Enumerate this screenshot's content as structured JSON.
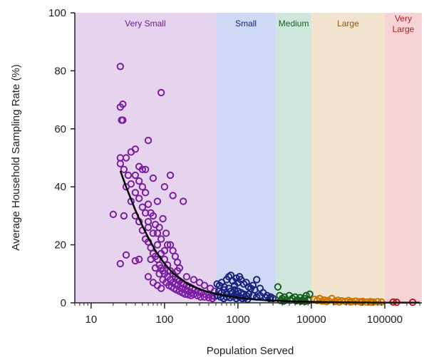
{
  "chart_data": {
    "type": "scatter",
    "xlabel": "Population Served",
    "ylabel": "Average Household Sampling Rate (%)",
    "xscale": "log",
    "xlim": [
      6,
      320000
    ],
    "ylim": [
      0,
      100
    ],
    "x_ticks": [
      {
        "value": 10,
        "label": "10"
      },
      {
        "value": 100,
        "label": "100"
      },
      {
        "value": 1000,
        "label": "1000"
      },
      {
        "value": 10000,
        "label": "10000"
      },
      {
        "value": 100000,
        "label": "100000"
      }
    ],
    "y_ticks": [
      {
        "value": 0,
        "label": "0"
      },
      {
        "value": 20,
        "label": "20"
      },
      {
        "value": 40,
        "label": "40"
      },
      {
        "value": 60,
        "label": "60"
      },
      {
        "value": 80,
        "label": "80"
      },
      {
        "value": 100,
        "label": "100"
      }
    ],
    "bands": [
      {
        "label": "Very Small",
        "x0": 6,
        "x1": 500,
        "fill": "#e6d4ee",
        "text_color": "#6a1b9a"
      },
      {
        "label": "Small",
        "x0": 500,
        "x1": 3300,
        "fill": "#cdd9f5",
        "text_color": "#1a237e"
      },
      {
        "label": "Medium",
        "x0": 3300,
        "x1": 10000,
        "fill": "#cfe6dc",
        "text_color": "#1b5e20"
      },
      {
        "label": "Large",
        "x0": 10000,
        "x1": 100000,
        "fill": "#f3e4cf",
        "text_color": "#8a5a00"
      },
      {
        "label": "Very Large",
        "x0": 100000,
        "x1": 320000,
        "fill": "#f6d3d6",
        "text_color": "#b71c1c"
      }
    ],
    "series": [
      {
        "category": "Very Small",
        "color": "#7b1fa2",
        "points": [
          [
            25,
            81.5
          ],
          [
            27,
            68.5
          ],
          [
            25,
            67.5
          ],
          [
            26,
            63
          ],
          [
            27,
            63
          ],
          [
            90,
            72.5
          ],
          [
            20,
            30.5
          ],
          [
            25,
            13.5
          ],
          [
            28,
            30
          ],
          [
            25,
            50
          ],
          [
            25,
            48
          ],
          [
            28,
            46
          ],
          [
            30,
            50
          ],
          [
            35,
            52
          ],
          [
            40,
            53
          ],
          [
            30,
            40
          ],
          [
            35,
            41
          ],
          [
            32,
            44
          ],
          [
            40,
            44
          ],
          [
            45,
            47
          ],
          [
            50,
            46
          ],
          [
            55,
            46
          ],
          [
            60,
            56
          ],
          [
            70,
            43
          ],
          [
            80,
            35
          ],
          [
            100,
            40
          ],
          [
            120,
            44
          ],
          [
            130,
            37
          ],
          [
            180,
            35
          ],
          [
            30,
            16.5
          ],
          [
            40,
            14.5
          ],
          [
            45,
            15
          ],
          [
            35,
            35
          ],
          [
            40,
            30
          ],
          [
            50,
            33
          ],
          [
            60,
            28
          ],
          [
            70,
            30
          ],
          [
            80,
            24
          ],
          [
            90,
            22
          ],
          [
            100,
            18
          ],
          [
            110,
            20
          ],
          [
            40,
            38
          ],
          [
            45,
            36
          ],
          [
            55,
            38
          ],
          [
            60,
            34
          ],
          [
            65,
            31
          ],
          [
            75,
            27
          ],
          [
            85,
            26
          ],
          [
            95,
            29
          ],
          [
            105,
            24
          ],
          [
            120,
            20
          ],
          [
            130,
            18
          ],
          [
            140,
            16
          ],
          [
            150,
            14
          ],
          [
            160,
            12
          ],
          [
            45,
            28
          ],
          [
            50,
            25
          ],
          [
            55,
            22
          ],
          [
            60,
            21
          ],
          [
            65,
            19
          ],
          [
            70,
            17
          ],
          [
            75,
            16
          ],
          [
            80,
            15
          ],
          [
            85,
            13
          ],
          [
            90,
            12
          ],
          [
            95,
            11
          ],
          [
            100,
            10
          ],
          [
            110,
            9
          ],
          [
            120,
            8
          ],
          [
            130,
            7
          ],
          [
            140,
            6.5
          ],
          [
            150,
            6
          ],
          [
            170,
            5
          ],
          [
            190,
            4.5
          ],
          [
            210,
            4
          ],
          [
            230,
            3.5
          ],
          [
            250,
            3
          ],
          [
            280,
            2.5
          ],
          [
            310,
            2
          ],
          [
            350,
            2
          ],
          [
            400,
            1.8
          ],
          [
            450,
            1.5
          ],
          [
            45,
            42
          ],
          [
            50,
            40
          ],
          [
            55,
            31
          ],
          [
            60,
            26
          ],
          [
            70,
            24
          ],
          [
            80,
            20
          ],
          [
            90,
            17
          ],
          [
            100,
            15
          ],
          [
            110,
            13
          ],
          [
            120,
            11
          ],
          [
            130,
            10
          ],
          [
            140,
            9
          ],
          [
            150,
            8
          ],
          [
            160,
            7.5
          ],
          [
            170,
            7
          ],
          [
            180,
            6.5
          ],
          [
            200,
            6
          ],
          [
            220,
            5.5
          ],
          [
            240,
            5
          ],
          [
            260,
            4.5
          ],
          [
            290,
            4
          ],
          [
            320,
            3.5
          ],
          [
            360,
            3
          ],
          [
            400,
            2.8
          ],
          [
            450,
            2.5
          ],
          [
            480,
            2.2
          ],
          [
            65,
            15
          ],
          [
            75,
            12
          ],
          [
            85,
            10
          ],
          [
            95,
            8
          ],
          [
            105,
            7
          ],
          [
            115,
            6
          ],
          [
            125,
            5.5
          ],
          [
            135,
            5
          ],
          [
            145,
            4.5
          ],
          [
            160,
            4
          ],
          [
            175,
            3.5
          ],
          [
            190,
            3
          ],
          [
            210,
            2.8
          ],
          [
            230,
            2.5
          ],
          [
            60,
            9
          ],
          [
            70,
            7
          ],
          [
            80,
            6
          ],
          [
            90,
            5
          ],
          [
            150,
            11
          ],
          [
            200,
            9
          ],
          [
            250,
            8
          ],
          [
            300,
            7
          ],
          [
            350,
            6
          ],
          [
            420,
            5
          ],
          [
            480,
            4
          ]
        ]
      },
      {
        "category": "Small",
        "color": "#1a237e",
        "points": [
          [
            520,
            6.5
          ],
          [
            560,
            6
          ],
          [
            600,
            7
          ],
          [
            650,
            5.5
          ],
          [
            700,
            8
          ],
          [
            750,
            9
          ],
          [
            800,
            9.5
          ],
          [
            850,
            7.5
          ],
          [
            900,
            6
          ],
          [
            950,
            8.5
          ],
          [
            1000,
            7
          ],
          [
            1050,
            9
          ],
          [
            1100,
            8
          ],
          [
            1200,
            6.5
          ],
          [
            1300,
            7
          ],
          [
            1400,
            5.5
          ],
          [
            1500,
            5
          ],
          [
            1600,
            6
          ],
          [
            1700,
            4.5
          ],
          [
            1800,
            8
          ],
          [
            2000,
            5
          ],
          [
            2200,
            3.5
          ],
          [
            2500,
            2.5
          ],
          [
            2800,
            2
          ],
          [
            3000,
            1.5
          ],
          [
            550,
            4
          ],
          [
            600,
            3.5
          ],
          [
            650,
            4.5
          ],
          [
            700,
            3
          ],
          [
            750,
            5
          ],
          [
            800,
            4
          ],
          [
            850,
            3.5
          ],
          [
            900,
            4.5
          ],
          [
            950,
            3
          ],
          [
            1000,
            4
          ],
          [
            1100,
            3.5
          ],
          [
            1200,
            3
          ],
          [
            1300,
            2.5
          ],
          [
            1400,
            3
          ],
          [
            1600,
            2.5
          ],
          [
            1800,
            2
          ],
          [
            2000,
            2.5
          ],
          [
            2400,
            1.8
          ],
          [
            2700,
            1.5
          ],
          [
            520,
            2.5
          ],
          [
            580,
            2
          ],
          [
            640,
            1.5
          ],
          [
            700,
            2
          ],
          [
            780,
            1.8
          ],
          [
            860,
            2.2
          ],
          [
            950,
            1.5
          ],
          [
            1050,
            2
          ],
          [
            1150,
            1.5
          ],
          [
            1250,
            1.8
          ],
          [
            1350,
            1.2
          ]
        ]
      },
      {
        "category": "Medium",
        "color": "#1b5e20",
        "points": [
          [
            3500,
            5.5
          ],
          [
            3700,
            2.5
          ],
          [
            4000,
            1.5
          ],
          [
            4300,
            2
          ],
          [
            4600,
            1
          ],
          [
            5000,
            2.5
          ],
          [
            5500,
            1.5
          ],
          [
            6000,
            2
          ],
          [
            6500,
            1
          ],
          [
            7000,
            1.8
          ],
          [
            7500,
            0.8
          ],
          [
            8000,
            1.5
          ],
          [
            8500,
            2.5
          ],
          [
            9000,
            1
          ],
          [
            9500,
            3
          ],
          [
            3800,
            0.8
          ],
          [
            4200,
            0.6
          ],
          [
            5200,
            0.9
          ],
          [
            6200,
            0.7
          ],
          [
            7200,
            0.6
          ],
          [
            8200,
            0.5
          ],
          [
            9200,
            0.8
          ]
        ]
      },
      {
        "category": "Large",
        "color": "#c77700",
        "points": [
          [
            11000,
            1.2
          ],
          [
            12000,
            0.8
          ],
          [
            13000,
            1.5
          ],
          [
            14000,
            0.6
          ],
          [
            15000,
            1
          ],
          [
            17000,
            0.8
          ],
          [
            19000,
            1.5
          ],
          [
            21000,
            0.5
          ],
          [
            23000,
            0.9
          ],
          [
            26000,
            0.7
          ],
          [
            29000,
            0.5
          ],
          [
            32000,
            0.8
          ],
          [
            36000,
            0.4
          ],
          [
            40000,
            0.6
          ],
          [
            45000,
            0.4
          ],
          [
            50000,
            0.5
          ],
          [
            56000,
            0.3
          ],
          [
            63000,
            0.4
          ],
          [
            70000,
            0.3
          ],
          [
            80000,
            0.4
          ],
          [
            90000,
            0.3
          ],
          [
            16000,
            0.4
          ],
          [
            24000,
            0.3
          ],
          [
            34000,
            0.3
          ],
          [
            48000,
            0.2
          ],
          [
            66000,
            0.2
          ]
        ]
      },
      {
        "category": "Very Large",
        "color": "#b71c1c",
        "points": [
          [
            130000,
            0.3
          ],
          [
            145000,
            0.2
          ],
          [
            240000,
            0.2
          ]
        ]
      }
    ],
    "fit": {
      "color": "#000000",
      "points": [
        [
          25,
          45.5
        ],
        [
          30,
          40
        ],
        [
          40,
          32
        ],
        [
          50,
          26.5
        ],
        [
          60,
          22.5
        ],
        [
          75,
          18
        ],
        [
          100,
          13.5
        ],
        [
          130,
          10.3
        ],
        [
          170,
          8
        ],
        [
          220,
          6.2
        ],
        [
          300,
          4.7
        ],
        [
          400,
          3.7
        ],
        [
          500,
          3.1
        ],
        [
          700,
          2.4
        ],
        [
          1000,
          1.8
        ],
        [
          1500,
          1.3
        ],
        [
          2000,
          1.05
        ],
        [
          3000,
          0.8
        ],
        [
          5000,
          0.55
        ],
        [
          10000,
          0.35
        ],
        [
          20000,
          0.22
        ],
        [
          50000,
          0.12
        ],
        [
          100000,
          0.08
        ],
        [
          300000,
          0.05
        ]
      ]
    }
  }
}
